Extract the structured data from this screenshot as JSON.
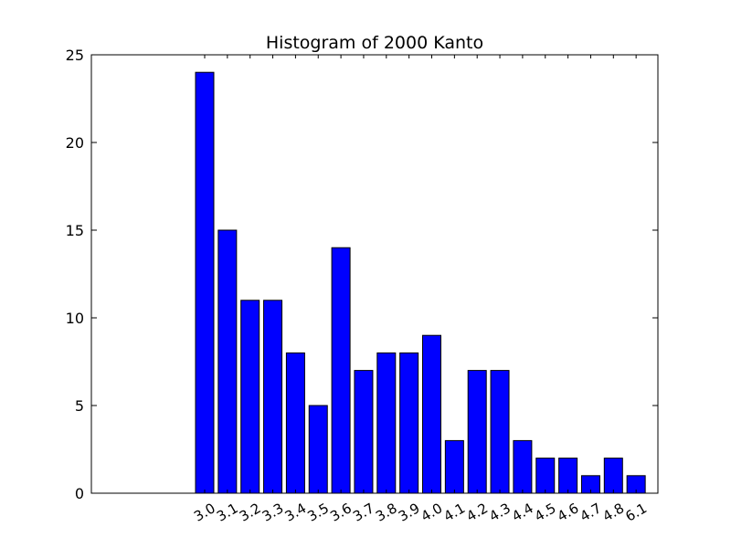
{
  "chart_data": {
    "type": "bar",
    "title": "Histogram of 2000 Kanto",
    "xlabel": "",
    "ylabel": "",
    "categories": [
      "3.0",
      "3.1",
      "3.2",
      "3.3",
      "3.4",
      "3.5",
      "3.6",
      "3.7",
      "3.8",
      "3.9",
      "4.0",
      "4.1",
      "4.2",
      "4.3",
      "4.4",
      "4.5",
      "4.6",
      "4.7",
      "4.8",
      "6.1"
    ],
    "values": [
      24,
      15,
      11,
      11,
      8,
      5,
      14,
      7,
      8,
      8,
      9,
      3,
      7,
      7,
      3,
      2,
      2,
      1,
      2,
      1
    ],
    "ylim": [
      0,
      25
    ],
    "yticks": [
      0,
      5,
      10,
      15,
      20,
      25
    ],
    "bar_color": "#0000ff",
    "grid": false,
    "legend": "none"
  }
}
